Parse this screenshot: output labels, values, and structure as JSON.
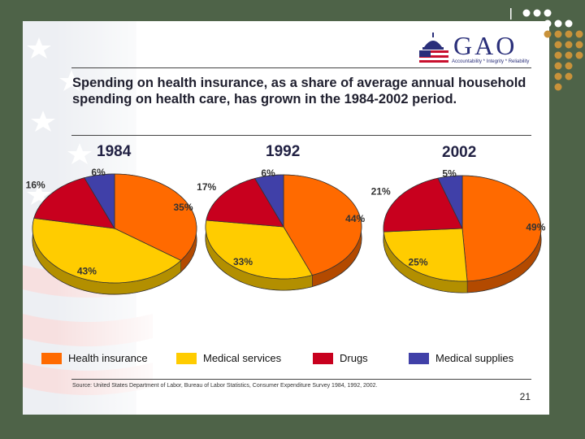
{
  "colors": {
    "health_insurance": "#ff6a00",
    "medical_services": "#ffcc00",
    "drugs": "#c8001e",
    "medical_supplies": "#4040a8"
  },
  "logo": {
    "name": "GAO",
    "tagline": "Accountability * Integrity * Reliability",
    "icon": "capitol-dome-flag-icon"
  },
  "title": "Spending on health insurance, as a share of average annual household spending on health care, has grown in the 1984-2002 period.",
  "chart_data": {
    "type": "pie",
    "categories": [
      "Health insurance",
      "Medical services",
      "Drugs",
      "Medical supplies"
    ],
    "series": [
      {
        "name": "1984",
        "values": [
          35,
          43,
          16,
          6
        ],
        "labels": [
          "35%",
          "43%",
          "16%",
          "6%"
        ]
      },
      {
        "name": "1992",
        "values": [
          44,
          33,
          17,
          6
        ],
        "labels": [
          "44%",
          "33%",
          "17%",
          "6%"
        ]
      },
      {
        "name": "2002",
        "values": [
          49,
          25,
          21,
          5
        ],
        "labels": [
          "49%",
          "25%",
          "21%",
          "5%"
        ]
      }
    ],
    "legend": [
      {
        "label": "Health insurance",
        "color": "#ff6a00"
      },
      {
        "label": "Medical services",
        "color": "#ffcc00"
      },
      {
        "label": "Drugs",
        "color": "#c8001e"
      },
      {
        "label": "Medical supplies",
        "color": "#4040a8"
      }
    ],
    "legend_position": "bottom"
  },
  "source": "Source: United States Department of Labor, Bureau of Labor Statistics, Consumer Expenditure Survey 1984, 1992, 2002.",
  "page_number": "21"
}
